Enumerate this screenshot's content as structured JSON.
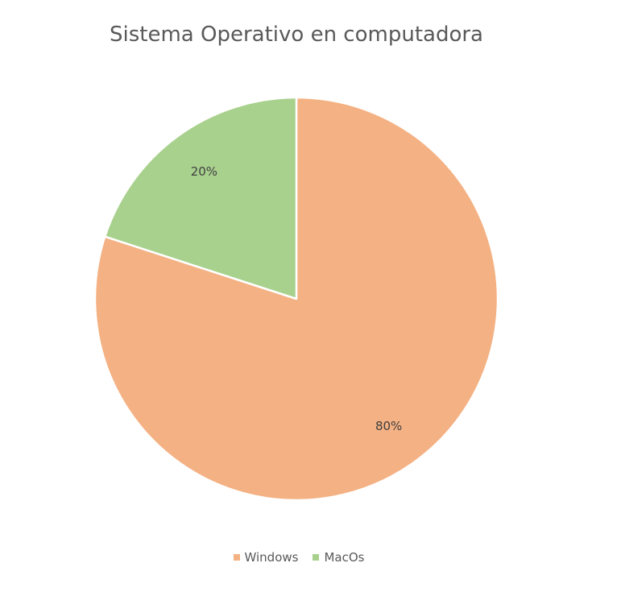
{
  "chart_data": {
    "type": "pie",
    "title": "Sistema Operativo en computadora",
    "categories": [
      "Windows",
      "MacOs"
    ],
    "values": [
      80,
      20
    ],
    "data_labels": [
      "80%",
      "20%"
    ],
    "colors": [
      "#F4B183",
      "#A9D18E"
    ],
    "legend_position": "bottom"
  }
}
